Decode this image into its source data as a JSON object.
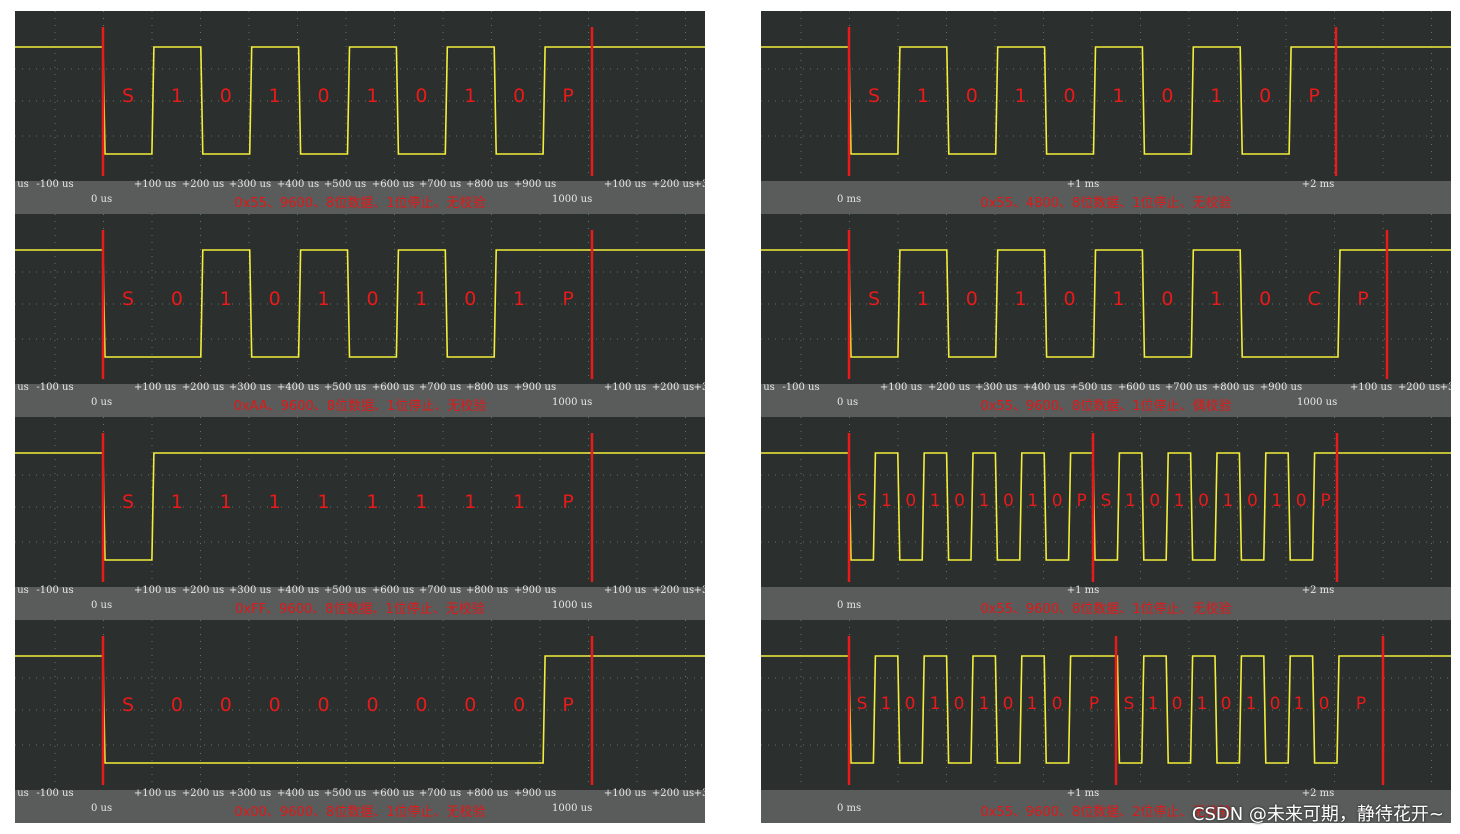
{
  "watermark": "CSDN @未来可期，静待花开~",
  "colors": {
    "background": "#2b2f2e",
    "axis_strip": "#5a5c5c",
    "signal": "#f2ee3a",
    "marker": "#e81a1a",
    "caption": "#e01818",
    "grid": "#7c8f86"
  },
  "panels": [
    {
      "id": "p1",
      "caption": "0x55、9600、8位数据、1位停止、无校验",
      "origin_label": "0 us",
      "end_label": "1000 us",
      "ticks": [
        "us",
        "-100 us",
        "+100 us",
        "+200 us",
        "+300 us",
        "+400 us",
        "+500 us",
        "+600 us",
        "+700 us",
        "+800 us",
        "+900 us",
        "+100 us",
        "+200 us",
        "+3"
      ],
      "bits": [
        "S",
        "1",
        "0",
        "1",
        "0",
        "1",
        "0",
        "1",
        "0",
        "P"
      ],
      "levels": [
        0,
        1,
        0,
        1,
        0,
        1,
        0,
        1,
        0,
        1
      ]
    },
    {
      "id": "p2",
      "caption": "0xAA、9600、8位数据、1位停止、无校验",
      "origin_label": "0 us",
      "end_label": "1000 us",
      "ticks": [
        "us",
        "-100 us",
        "+100 us",
        "+200 us",
        "+300 us",
        "+400 us",
        "+500 us",
        "+600 us",
        "+700 us",
        "+800 us",
        "+900 us",
        "+100 us",
        "+200 us",
        "+3"
      ],
      "bits": [
        "S",
        "0",
        "1",
        "0",
        "1",
        "0",
        "1",
        "0",
        "1",
        "P"
      ],
      "levels": [
        0,
        0,
        1,
        0,
        1,
        0,
        1,
        0,
        1,
        1
      ]
    },
    {
      "id": "p3",
      "caption": "0xFF、9600、8位数据、1位停止、无校验",
      "origin_label": "0 us",
      "end_label": "1000 us",
      "ticks": [
        "us",
        "-100 us",
        "+100 us",
        "+200 us",
        "+300 us",
        "+400 us",
        "+500 us",
        "+600 us",
        "+700 us",
        "+800 us",
        "+900 us",
        "+100 us",
        "+200 us",
        "+3"
      ],
      "bits": [
        "S",
        "1",
        "1",
        "1",
        "1",
        "1",
        "1",
        "1",
        "1",
        "P"
      ],
      "levels": [
        0,
        1,
        1,
        1,
        1,
        1,
        1,
        1,
        1,
        1
      ]
    },
    {
      "id": "p4",
      "caption": "0x00、9600、8位数据、1位停止、无校验",
      "origin_label": "0 us",
      "end_label": "1000 us",
      "ticks": [
        "us",
        "-100 us",
        "+100 us",
        "+200 us",
        "+300 us",
        "+400 us",
        "+500 us",
        "+600 us",
        "+700 us",
        "+800 us",
        "+900 us",
        "+100 us",
        "+200 us",
        "+3"
      ],
      "bits": [
        "S",
        "0",
        "0",
        "0",
        "0",
        "0",
        "0",
        "0",
        "0",
        "P"
      ],
      "levels": [
        0,
        0,
        0,
        0,
        0,
        0,
        0,
        0,
        0,
        1
      ]
    },
    {
      "id": "p5",
      "caption": "0x55、4800、8位数据、1位停止、无校验",
      "origin_label": "0 ms",
      "end_label": "",
      "ticks": [
        "+1 ms",
        "+2 ms"
      ],
      "bits": [
        "S",
        "1",
        "0",
        "1",
        "0",
        "1",
        "0",
        "1",
        "0",
        "P"
      ],
      "levels": [
        0,
        1,
        0,
        1,
        0,
        1,
        0,
        1,
        0,
        1
      ]
    },
    {
      "id": "p6",
      "caption": "0x55、9600、8位数据、1位停止、偶校验",
      "origin_label": "0 us",
      "end_label": "1000 us",
      "ticks": [
        "us",
        "-100 us",
        "+100 us",
        "+200 us",
        "+300 us",
        "+400 us",
        "+500 us",
        "+600 us",
        "+700 us",
        "+800 us",
        "+900 us",
        "+100 us",
        "+200 us",
        "+3"
      ],
      "bits": [
        "S",
        "1",
        "0",
        "1",
        "0",
        "1",
        "0",
        "1",
        "0",
        "C",
        "P"
      ],
      "levels": [
        0,
        1,
        0,
        1,
        0,
        1,
        0,
        1,
        0,
        0,
        1
      ]
    },
    {
      "id": "p7",
      "caption": "0x55、9600、8位数据、1位停止、无校验",
      "origin_label": "0 ms",
      "end_label": "",
      "ticks": [
        "+1 ms",
        "+2 ms"
      ],
      "bits": [
        "S",
        "1",
        "0",
        "1",
        "0",
        "1",
        "0",
        "1",
        "0",
        "P",
        "S",
        "1",
        "0",
        "1",
        "0",
        "1",
        "0",
        "1",
        "0",
        "P"
      ],
      "levels": [
        0,
        1,
        0,
        1,
        0,
        1,
        0,
        1,
        0,
        1,
        0,
        1,
        0,
        1,
        0,
        1,
        0,
        1,
        0,
        1
      ]
    },
    {
      "id": "p8",
      "caption": "0x55、9600、8位数据、2位停止、无校验",
      "origin_label": "0 ms",
      "end_label": "",
      "ticks": [
        "+1 ms",
        "+2 ms"
      ],
      "bits": [
        "S",
        "1",
        "0",
        "1",
        "0",
        "1",
        "0",
        "1",
        "0",
        "P",
        "S",
        "1",
        "0",
        "1",
        "0",
        "1",
        "0",
        "1",
        "0",
        "P"
      ],
      "levels": [
        0,
        1,
        0,
        1,
        0,
        1,
        0,
        1,
        0,
        1,
        1,
        0,
        1,
        0,
        1,
        0,
        1,
        0,
        1,
        0,
        1,
        1
      ]
    }
  ]
}
